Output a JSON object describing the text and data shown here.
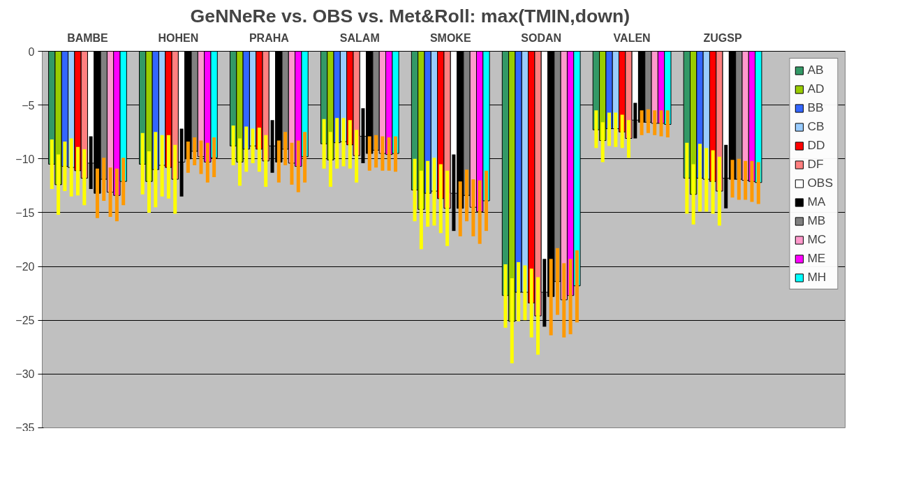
{
  "chart_data": {
    "type": "bar",
    "title": "GeNNeRe  vs.  OBS  vs.  Met&Roll:          max(TMIN,down)",
    "categories": [
      "BAMBE",
      "HOHEN",
      "PRAHA",
      "SALAM",
      "SMOKE",
      "SODAN",
      "VALEN",
      "ZUGSP"
    ],
    "ylim": [
      -35,
      0
    ],
    "yticks": [
      0,
      -5,
      -10,
      -15,
      -20,
      -25,
      -30,
      -35
    ],
    "grid": "y",
    "legend": "right",
    "series": [
      {
        "name": "AB",
        "color": "#339966",
        "values": [
          -10.5,
          -10.5,
          -8.8,
          -8.6,
          -12.9,
          -22.7,
          -7.3,
          -11.8
        ],
        "errors": [
          [
            -12.8,
            -8.2
          ],
          [
            -13.3,
            -7.6
          ],
          [
            -10.6,
            -6.9
          ],
          [
            -10.9,
            -6.3
          ],
          [
            -15.8,
            -10.0
          ],
          [
            -25.7,
            -19.8
          ],
          [
            -9.0,
            -5.5
          ],
          [
            -15.1,
            -8.5
          ]
        ]
      },
      {
        "name": "AD",
        "color": "#99cc00",
        "values": [
          -12.4,
          -12.1,
          -10.3,
          -10.1,
          -14.7,
          -25.1,
          -8.3,
          -13.3
        ],
        "errors": [
          [
            -15.2,
            -9.6
          ],
          [
            -15.0,
            -9.3
          ],
          [
            -12.5,
            -8.1
          ],
          [
            -12.6,
            -7.5
          ],
          [
            -18.4,
            -11.1
          ],
          [
            -29.0,
            -21.1
          ],
          [
            -10.3,
            -6.6
          ],
          [
            -16.1,
            -10.5
          ]
        ]
      },
      {
        "name": "BB",
        "color": "#3366ff",
        "values": [
          -10.7,
          -11.0,
          -9.1,
          -8.5,
          -13.2,
          -22.4,
          -7.2,
          -11.8
        ],
        "errors": [
          [
            -13.0,
            -8.4
          ],
          [
            -14.5,
            -7.5
          ],
          [
            -11.2,
            -7.0
          ],
          [
            -10.9,
            -6.2
          ],
          [
            -16.3,
            -10.2
          ],
          [
            -25.1,
            -19.6
          ],
          [
            -8.8,
            -5.7
          ],
          [
            -14.9,
            -8.6
          ]
        ]
      },
      {
        "name": "CB",
        "color": "#99ccff",
        "values": [
          -10.8,
          -10.6,
          -8.8,
          -8.4,
          -13.0,
          -22.4,
          -7.2,
          -11.9
        ],
        "errors": [
          [
            -13.5,
            -8.1
          ],
          [
            -13.5,
            -7.8
          ],
          [
            -10.4,
            -7.2
          ],
          [
            -10.7,
            -6.2
          ],
          [
            -16.2,
            -9.9
          ],
          [
            -25.0,
            -19.9
          ],
          [
            -8.9,
            -5.7
          ],
          [
            -14.9,
            -9.0
          ]
        ]
      },
      {
        "name": "DD",
        "color": "#ff0000",
        "values": [
          -11.1,
          -10.8,
          -9.1,
          -8.7,
          -13.7,
          -23.4,
          -7.5,
          -12.1
        ],
        "errors": [
          [
            -13.4,
            -8.9
          ],
          [
            -13.7,
            -7.8
          ],
          [
            -11.2,
            -7.1
          ],
          [
            -10.9,
            -6.4
          ],
          [
            -16.9,
            -10.5
          ],
          [
            -26.6,
            -20.2
          ],
          [
            -9.0,
            -5.9
          ],
          [
            -15.1,
            -9.2
          ]
        ]
      },
      {
        "name": "DF",
        "color": "#ff8080",
        "values": [
          -11.8,
          -11.9,
          -10.2,
          -9.7,
          -14.6,
          -24.6,
          -8.1,
          -13.0
        ],
        "errors": [
          [
            -14.3,
            -9.1
          ],
          [
            -15.1,
            -8.7
          ],
          [
            -12.6,
            -7.8
          ],
          [
            -12.2,
            -7.3
          ],
          [
            -18.1,
            -11.1
          ],
          [
            -28.2,
            -21.0
          ],
          [
            -9.9,
            -6.4
          ],
          [
            -16.2,
            -9.8
          ]
        ]
      },
      {
        "name": "OBS",
        "color": "#ffffff",
        "values": [
          -10.4,
          -10.3,
          -8.8,
          -7.9,
          -13.2,
          -22.4,
          -6.4,
          -11.8
        ],
        "errors": [
          [
            -12.8,
            -7.9
          ],
          [
            -13.5,
            -7.2
          ],
          [
            -11.3,
            -6.4
          ],
          [
            -10.4,
            -5.3
          ],
          [
            -16.7,
            -9.6
          ],
          [
            -25.6,
            -19.3
          ],
          [
            -8.1,
            -4.8
          ],
          [
            -14.6,
            -8.7
          ]
        ]
      },
      {
        "name": "MA",
        "color": "#000000",
        "values": [
          -13.2,
          -10.0,
          -10.3,
          -9.5,
          -14.6,
          -22.8,
          -6.6,
          -11.9
        ],
        "errors": [
          [
            -15.5,
            -10.9
          ],
          [
            -11.3,
            -8.4
          ],
          [
            -12.2,
            -8.3
          ],
          [
            -11.1,
            -7.9
          ],
          [
            -17.2,
            -12.1
          ],
          [
            -26.4,
            -19.3
          ],
          [
            -7.8,
            -5.5
          ],
          [
            -13.6,
            -10.1
          ]
        ]
      },
      {
        "name": "MB",
        "color": "#808080",
        "values": [
          -11.9,
          -9.3,
          -9.1,
          -9.2,
          -13.4,
          -21.4,
          -6.6,
          -11.9
        ],
        "errors": [
          [
            -13.9,
            -9.9
          ],
          [
            -10.6,
            -8.0
          ],
          [
            -10.6,
            -7.5
          ],
          [
            -10.8,
            -7.8
          ],
          [
            -15.8,
            -11.0
          ],
          [
            -24.5,
            -18.3
          ],
          [
            -7.6,
            -5.4
          ],
          [
            -13.8,
            -10.0
          ]
        ]
      },
      {
        "name": "MC",
        "color": "#ff99cc",
        "values": [
          -13.1,
          -9.8,
          -10.4,
          -9.5,
          -14.5,
          -23.1,
          -6.7,
          -12.0
        ],
        "errors": [
          [
            -15.4,
            -10.8
          ],
          [
            -11.4,
            -8.3
          ],
          [
            -12.4,
            -8.5
          ],
          [
            -11.1,
            -7.9
          ],
          [
            -17.2,
            -11.9
          ],
          [
            -26.6,
            -19.7
          ],
          [
            -7.8,
            -5.5
          ],
          [
            -13.8,
            -10.2
          ]
        ]
      },
      {
        "name": "ME",
        "color": "#ff00ff",
        "values": [
          -13.4,
          -10.3,
          -10.7,
          -9.6,
          -14.9,
          -22.7,
          -6.7,
          -12.1
        ],
        "errors": [
          [
            -15.8,
            -10.9
          ],
          [
            -12.2,
            -8.5
          ],
          [
            -13.1,
            -8.3
          ],
          [
            -11.1,
            -8.0
          ],
          [
            -17.9,
            -12.0
          ],
          [
            -26.3,
            -19.3
          ],
          [
            -7.9,
            -5.5
          ],
          [
            -14.0,
            -10.2
          ]
        ]
      },
      {
        "name": "MH",
        "color": "#00ffff",
        "values": [
          -12.1,
          -9.9,
          -9.8,
          -9.5,
          -13.9,
          -21.8,
          -6.8,
          -12.2
        ],
        "errors": [
          [
            -14.3,
            -9.9
          ],
          [
            -11.7,
            -8.0
          ],
          [
            -12.2,
            -7.5
          ],
          [
            -11.2,
            -7.9
          ],
          [
            -16.7,
            -11.1
          ],
          [
            -25.2,
            -18.5
          ],
          [
            -8.0,
            -5.5
          ],
          [
            -14.2,
            -10.3
          ]
        ]
      }
    ]
  }
}
